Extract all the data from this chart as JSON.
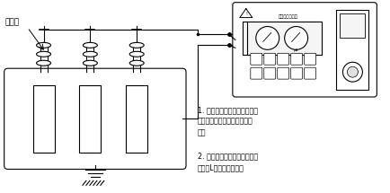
{
  "bg_color": "#ffffff",
  "line_color": "#000000",
  "annotation1": "1. 屏蔽环的使用能够有效地抑\n制表面泄漏电流带来的测量误\n差。",
  "annotation2": "2. 仪器使用和检定过程中尽可\n能的使L端测试线悬空。",
  "label_shielding": "屏蔽环",
  "meter_title": "绝缘电阻测试仪",
  "font_size_label": 6.5,
  "font_size_annot": 5.8,
  "font_size_meter_title": 3.8
}
